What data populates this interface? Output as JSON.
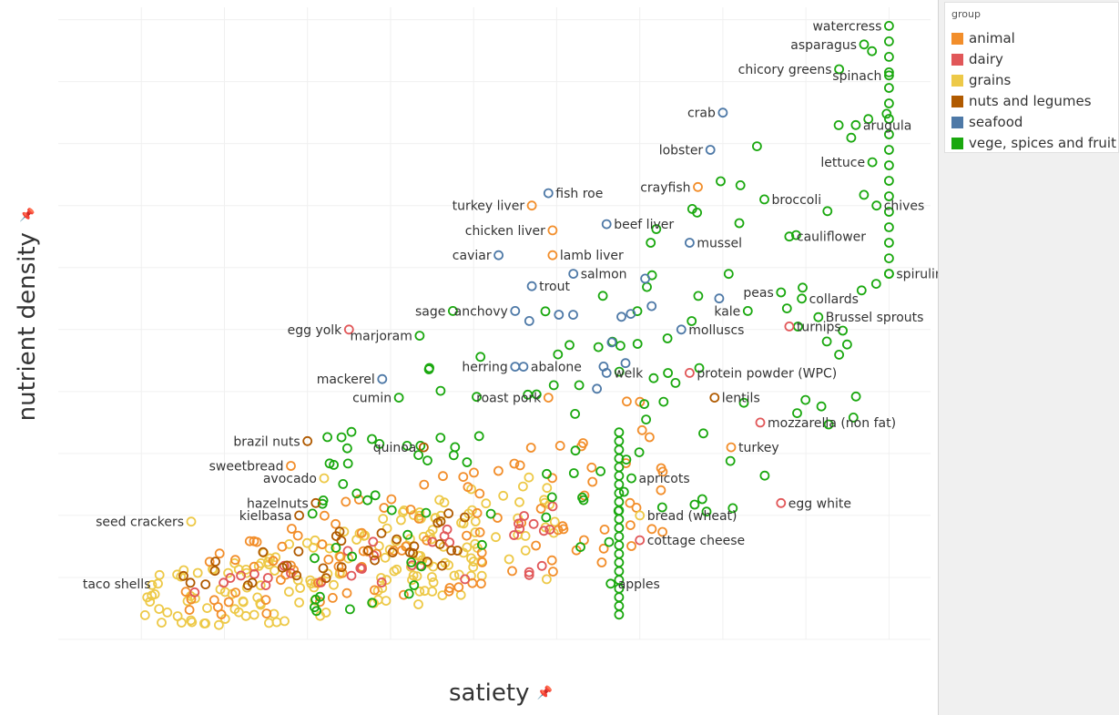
{
  "colors": {
    "animal": "#f28e2b",
    "dairy": "#e15759",
    "grains": "#edc948",
    "nuts and legumes": "#b05a00",
    "seafood": "#4e79a7",
    "vege, spices and fruit": "#1aa80f"
  },
  "legend": {
    "title": "group",
    "items": [
      {
        "label": "animal",
        "color": "#f28e2b"
      },
      {
        "label": "dairy",
        "color": "#e15759"
      },
      {
        "label": "grains",
        "color": "#edc948"
      },
      {
        "label": "nuts and legumes",
        "color": "#b05a00"
      },
      {
        "label": "seafood",
        "color": "#4e79a7"
      },
      {
        "label": "vege, spices and fruit",
        "color": "#1aa80f"
      }
    ]
  },
  "chart_data": {
    "type": "scatter",
    "xlabel": "satiety",
    "ylabel": "nutrient density",
    "xlim": [
      0,
      10.5
    ],
    "ylim": [
      0,
      10.2
    ],
    "grid": true,
    "legend_position": "right",
    "labeled_points": [
      {
        "label": "watercress",
        "group": "vege, spices and fruit",
        "x": 10.0,
        "y": 9.9
      },
      {
        "label": "asparagus",
        "group": "vege, spices and fruit",
        "x": 9.7,
        "y": 9.6
      },
      {
        "label": "spinach",
        "group": "vege, spices and fruit",
        "x": 10.0,
        "y": 9.1
      },
      {
        "label": "chicory greens",
        "group": "vege, spices and fruit",
        "x": 9.4,
        "y": 9.2
      },
      {
        "label": "arugula",
        "group": "vege, spices and fruit",
        "x": 9.6,
        "y": 8.3
      },
      {
        "label": "crab",
        "group": "seafood",
        "x": 8.0,
        "y": 8.5
      },
      {
        "label": "lobster",
        "group": "seafood",
        "x": 7.85,
        "y": 7.9
      },
      {
        "label": "crayfish",
        "group": "animal",
        "x": 7.7,
        "y": 7.3
      },
      {
        "label": "lettuce",
        "group": "vege, spices and fruit",
        "x": 9.8,
        "y": 7.7
      },
      {
        "label": "broccoli",
        "group": "vege, spices and fruit",
        "x": 8.5,
        "y": 7.1
      },
      {
        "label": "chives",
        "group": "vege, spices and fruit",
        "x": 9.85,
        "y": 7.0
      },
      {
        "label": "fish roe",
        "group": "seafood",
        "x": 5.9,
        "y": 7.2
      },
      {
        "label": "turkey liver",
        "group": "animal",
        "x": 5.7,
        "y": 7.0
      },
      {
        "label": "beef liver",
        "group": "seafood",
        "x": 6.6,
        "y": 6.7
      },
      {
        "label": "chicken liver",
        "group": "animal",
        "x": 5.95,
        "y": 6.6
      },
      {
        "label": "mussel",
        "group": "seafood",
        "x": 7.6,
        "y": 6.4
      },
      {
        "label": "cauliflower",
        "group": "vege, spices and fruit",
        "x": 8.8,
        "y": 6.5
      },
      {
        "label": "lamb liver",
        "group": "animal",
        "x": 5.95,
        "y": 6.2
      },
      {
        "label": "caviar",
        "group": "seafood",
        "x": 5.3,
        "y": 6.2
      },
      {
        "label": "trout",
        "group": "seafood",
        "x": 5.7,
        "y": 5.7
      },
      {
        "label": "salmon",
        "group": "seafood",
        "x": 6.2,
        "y": 5.9
      },
      {
        "label": "peas",
        "group": "vege, spices and fruit",
        "x": 8.7,
        "y": 5.6
      },
      {
        "label": "collards",
        "group": "vege, spices and fruit",
        "x": 8.95,
        "y": 5.5
      },
      {
        "label": "spirulina",
        "group": "vege, spices and fruit",
        "x": 10.0,
        "y": 5.9
      },
      {
        "label": "anchovy",
        "group": "seafood",
        "x": 5.5,
        "y": 5.3
      },
      {
        "label": "sage",
        "group": "vege, spices and fruit",
        "x": 4.75,
        "y": 5.3
      },
      {
        "label": "kale",
        "group": "vege, spices and fruit",
        "x": 8.3,
        "y": 5.3
      },
      {
        "label": "Brussel sprouts",
        "group": "vege, spices and fruit",
        "x": 9.15,
        "y": 5.2
      },
      {
        "label": "egg yolk",
        "group": "dairy",
        "x": 3.5,
        "y": 5.0
      },
      {
        "label": "marjoram",
        "group": "vege, spices and fruit",
        "x": 4.35,
        "y": 4.9
      },
      {
        "label": "molluscs",
        "group": "seafood",
        "x": 7.5,
        "y": 5.0
      },
      {
        "label": "turnips",
        "group": "dairy",
        "x": 8.8,
        "y": 5.05
      },
      {
        "label": "herring",
        "group": "seafood",
        "x": 5.5,
        "y": 4.4
      },
      {
        "label": "abalone",
        "group": "seafood",
        "x": 5.6,
        "y": 4.4
      },
      {
        "label": "welk",
        "group": "seafood",
        "x": 6.6,
        "y": 4.3
      },
      {
        "label": "protein powder (WPC)",
        "group": "dairy",
        "x": 7.6,
        "y": 4.3
      },
      {
        "label": "mackerel",
        "group": "seafood",
        "x": 3.9,
        "y": 4.2
      },
      {
        "label": "roast pork",
        "group": "animal",
        "x": 5.9,
        "y": 3.9
      },
      {
        "label": "lentils",
        "group": "nuts and legumes",
        "x": 7.9,
        "y": 3.9
      },
      {
        "label": "cumin",
        "group": "vege, spices and fruit",
        "x": 4.1,
        "y": 3.9
      },
      {
        "label": "mozzarella (non fat)",
        "group": "dairy",
        "x": 8.45,
        "y": 3.5
      },
      {
        "label": "brazil nuts",
        "group": "nuts and legumes",
        "x": 3.0,
        "y": 3.2
      },
      {
        "label": "quinoa",
        "group": "nuts and legumes",
        "x": 4.4,
        "y": 3.1
      },
      {
        "label": "turkey",
        "group": "animal",
        "x": 8.1,
        "y": 3.1
      },
      {
        "label": "sweetbread",
        "group": "animal",
        "x": 2.8,
        "y": 2.8
      },
      {
        "label": "avocado",
        "group": "grains",
        "x": 3.2,
        "y": 2.6
      },
      {
        "label": "apricots",
        "group": "vege, spices and fruit",
        "x": 6.9,
        "y": 2.6
      },
      {
        "label": "hazelnuts",
        "group": "nuts and legumes",
        "x": 3.1,
        "y": 2.2
      },
      {
        "label": "seed crackers",
        "group": "grains",
        "x": 1.6,
        "y": 1.9
      },
      {
        "label": "kielbasa",
        "group": "nuts and legumes",
        "x": 2.9,
        "y": 2.0
      },
      {
        "label": "bread (wheat)",
        "group": "grains",
        "x": 7.0,
        "y": 2.0
      },
      {
        "label": "egg white",
        "group": "dairy",
        "x": 8.7,
        "y": 2.2
      },
      {
        "label": "cottage cheese",
        "group": "dairy",
        "x": 7.0,
        "y": 1.6
      },
      {
        "label": "taco shells",
        "group": "grains",
        "x": 1.2,
        "y": 0.9
      },
      {
        "label": "apples",
        "group": "vege, spices and fruit",
        "x": 6.65,
        "y": 0.9
      }
    ],
    "cluster_data": [
      {
        "group": "grains",
        "count": 180,
        "x_range": [
          1.0,
          6.0
        ],
        "y_range": [
          0.1,
          2.9
        ]
      },
      {
        "group": "animal",
        "count": 110,
        "x_range": [
          1.5,
          7.5
        ],
        "y_range": [
          0.3,
          4.2
        ]
      },
      {
        "group": "dairy",
        "count": 35,
        "x_range": [
          1.6,
          6.0
        ],
        "y_range": [
          0.6,
          2.2
        ]
      },
      {
        "group": "nuts and legumes",
        "count": 35,
        "x_range": [
          1.5,
          5.0
        ],
        "y_range": [
          0.8,
          2.3
        ]
      },
      {
        "group": "vege, spices and fruit",
        "count": 130,
        "x_range": [
          3.0,
          10.0
        ],
        "y_range": [
          0.3,
          10.0
        ]
      },
      {
        "group": "seafood",
        "count": 12,
        "x_range": [
          5.0,
          8.2
        ],
        "y_range": [
          3.5,
          7.5
        ]
      }
    ]
  }
}
